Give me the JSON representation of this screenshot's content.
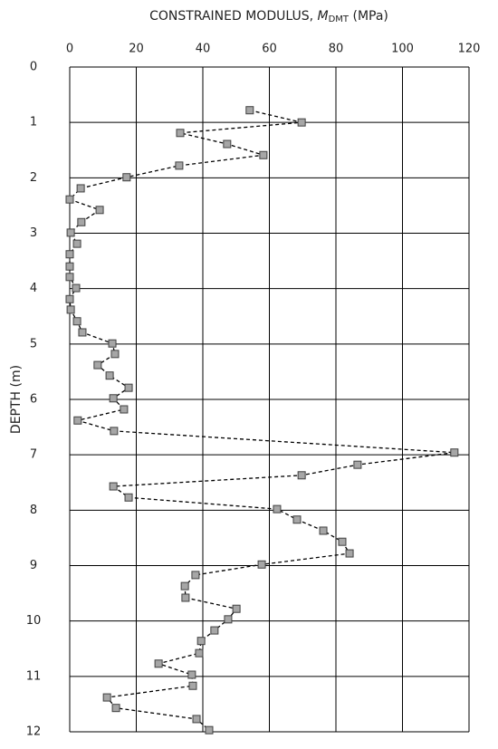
{
  "chart_data": {
    "type": "scatter",
    "title_parts": [
      "CONSTRAINED MODULUS, ",
      "M",
      "DMT",
      " (MPa)"
    ],
    "ylabel": "DEPTH (m)",
    "x": [
      54.1,
      69.7,
      33.2,
      47.3,
      58.2,
      32.9,
      17.1,
      3.3,
      0,
      9.0,
      3.5,
      0.3,
      2.2,
      0,
      0,
      0,
      1.9,
      0,
      0.3,
      2.2,
      3.8,
      12.8,
      13.6,
      8.4,
      12.0,
      17.7,
      13.1,
      16.3,
      2.4,
      13.3,
      115.6,
      86.5,
      69.7,
      13.1,
      17.7,
      62.3,
      68.3,
      76.2,
      81.9,
      84.1,
      57.7,
      37.8,
      34.6,
      34.8,
      50.1,
      47.6,
      43.5,
      39.5,
      38.9,
      26.7,
      36.7,
      37.0,
      11.2,
      13.9,
      38.1,
      41.9
    ],
    "values": [
      0.78,
      1.0,
      1.19,
      1.39,
      1.59,
      1.78,
      1.99,
      2.19,
      2.39,
      2.58,
      2.8,
      2.99,
      3.19,
      3.38,
      3.6,
      3.79,
      3.99,
      4.19,
      4.38,
      4.59,
      4.79,
      4.99,
      5.18,
      5.38,
      5.57,
      5.79,
      5.98,
      6.18,
      6.38,
      6.57,
      6.96,
      7.18,
      7.37,
      7.57,
      7.77,
      7.98,
      8.17,
      8.37,
      8.57,
      8.78,
      8.98,
      9.17,
      9.37,
      9.58,
      9.78,
      9.97,
      10.17,
      10.36,
      10.58,
      10.77,
      10.97,
      11.17,
      11.38,
      11.57,
      11.77,
      11.97
    ],
    "marker_color": "#a6a6a6",
    "line_color": "#000000",
    "xlim": [
      0,
      120
    ],
    "xticks": [
      0,
      20,
      40,
      60,
      80,
      100,
      120
    ],
    "ylim": [
      0,
      12
    ],
    "yticks": [
      0,
      1,
      2,
      3,
      4,
      5,
      6,
      7,
      8,
      9,
      10,
      11,
      12
    ],
    "y_inverted": true,
    "x_axis_position": "top",
    "grid": true
  }
}
